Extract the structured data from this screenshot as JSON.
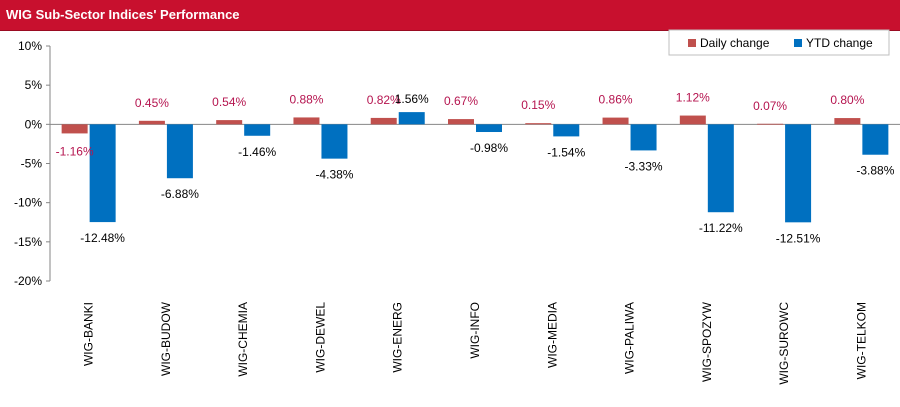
{
  "title": "WIG Sub-Sector Indices' Performance",
  "colors": {
    "title_bg": "#c8102e",
    "daily": "#c0504d",
    "ytd": "#0070c0",
    "daily_label": "#b5144f"
  },
  "chart_data": {
    "type": "bar",
    "title": "WIG Sub-Sector Indices' Performance",
    "categories": [
      "WIG-BANKI",
      "WIG-BUDOW",
      "WIG-CHEMIA",
      "WIG-DEWEL",
      "WIG-ENERG",
      "WIG-INFO",
      "WIG-MEDIA",
      "WIG-PALIWA",
      "WIG-SPOZYW",
      "WIG-SUROWC",
      "WIG-TELKOM"
    ],
    "series": [
      {
        "name": "Daily change",
        "values": [
          -1.16,
          0.45,
          0.54,
          0.88,
          0.82,
          0.67,
          0.15,
          0.86,
          1.12,
          0.07,
          0.8
        ],
        "labels": [
          "-1.16%",
          "0.45%",
          "0.54%",
          "0.88%",
          "0.82%",
          "0.67%",
          "0.15%",
          "0.86%",
          "1.12%",
          "0.07%",
          "0.80%"
        ]
      },
      {
        "name": "YTD change",
        "values": [
          -12.48,
          -6.88,
          -1.46,
          -4.38,
          1.56,
          -0.98,
          -1.54,
          -3.33,
          -11.22,
          -12.51,
          -3.88
        ],
        "labels": [
          "-12.48%",
          "-6.88%",
          "-1.46%",
          "-4.38%",
          "1.56%",
          "-0.98%",
          "-1.54%",
          "-3.33%",
          "-11.22%",
          "-12.51%",
          "-3.88%"
        ]
      }
    ],
    "ylim": [
      -20,
      10
    ],
    "yticks": [
      10,
      5,
      0,
      -5,
      -10,
      -15,
      -20
    ],
    "ytick_labels": [
      "10%",
      "5%",
      "0%",
      "-5%",
      "-10%",
      "-15%",
      "-20%"
    ],
    "xlabel": "",
    "ylabel": "",
    "grid": false,
    "legend": "top-right"
  }
}
